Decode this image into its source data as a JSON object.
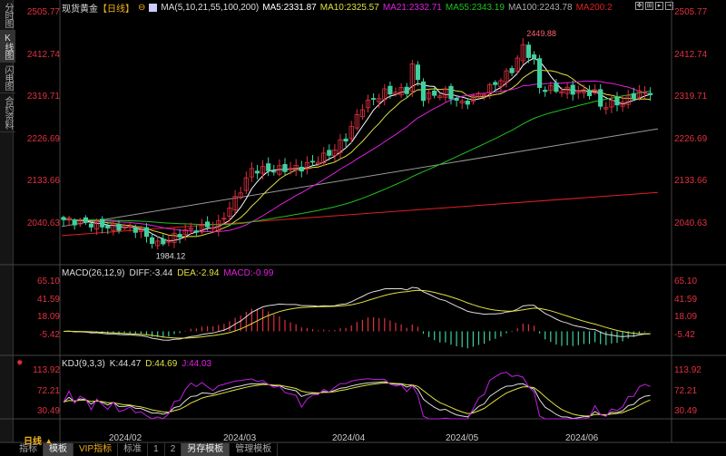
{
  "sidebar": {
    "items": [
      {
        "label": "分时图",
        "active": false
      },
      {
        "label": "K线图",
        "active": true
      },
      {
        "label": "闪电图",
        "active": false
      },
      {
        "label": "合约资料",
        "active": false
      }
    ]
  },
  "header": {
    "instrument": "现货黄金",
    "period": "【日线】",
    "ma_label": "MA(5,10,21,55,100,200)",
    "ma5": "MA5:2331.87",
    "ma10": "MA10:2325.57",
    "ma21": "MA21:2332.71",
    "ma55": "MA55:2343.19",
    "ma100": "MA100:2243.78",
    "ma200": "MA200:2"
  },
  "price_axis": [
    "2505.77",
    "2412.74",
    "2319.71",
    "2226.69",
    "2133.66",
    "2040.63"
  ],
  "annotations": {
    "high": "2449.88",
    "low": "1984.12"
  },
  "macd": {
    "label": "MACD(26,12,9)",
    "diff": "DIFF:-3.44",
    "dea": "DEA:-2.94",
    "macd": "MACD:-0.99",
    "axis": [
      "65.10",
      "41.59",
      "18.09",
      "-5.42"
    ]
  },
  "kdj": {
    "label": "KDJ(9,3,3)",
    "k": "K:44.47",
    "d": "D:44.69",
    "j": "J:44.03",
    "axis": [
      "113.92",
      "72.21",
      "30.49"
    ]
  },
  "dates": [
    "2024/02",
    "2024/03",
    "2024/04",
    "2024/05",
    "2024/06"
  ],
  "period_selector": "日线 ▲",
  "bottom_tabs": [
    "指标",
    "模板",
    "VIP指标",
    "标准",
    "1",
    "2",
    "另存模板",
    "管理模板"
  ],
  "colors": {
    "up": "#e03040",
    "down": "#40d0a0",
    "ma5": "#ffffff",
    "ma10": "#e0e040",
    "ma21": "#e020e0",
    "ma55": "#20c020",
    "ma100": "#999999",
    "ma200": "#e02020"
  },
  "chart_data": {
    "type": "candlestick",
    "ylim": [
      1960,
      2505.77
    ],
    "keypoints": [
      [
        0,
        2050
      ],
      [
        8,
        2035
      ],
      [
        13,
        2030
      ],
      [
        17,
        1995
      ],
      [
        22,
        2025
      ],
      [
        28,
        2040
      ],
      [
        31,
        2095
      ],
      [
        34,
        2160
      ],
      [
        38,
        2160
      ],
      [
        43,
        2165
      ],
      [
        48,
        2195
      ],
      [
        51,
        2230
      ],
      [
        54,
        2300
      ],
      [
        58,
        2330
      ],
      [
        62,
        2335
      ],
      [
        63,
        2390
      ],
      [
        65,
        2320
      ],
      [
        69,
        2330
      ],
      [
        72,
        2305
      ],
      [
        77,
        2340
      ],
      [
        81,
        2380
      ],
      [
        83,
        2430
      ],
      [
        85,
        2400
      ],
      [
        86,
        2340
      ],
      [
        90,
        2335
      ],
      [
        96,
        2330
      ],
      [
        97,
        2300
      ],
      [
        101,
        2310
      ],
      [
        104,
        2330
      ],
      [
        106,
        2325
      ]
    ],
    "ma100_range": [
      2035,
      2250
    ],
    "ma200_range": [
      2015,
      2110
    ]
  }
}
